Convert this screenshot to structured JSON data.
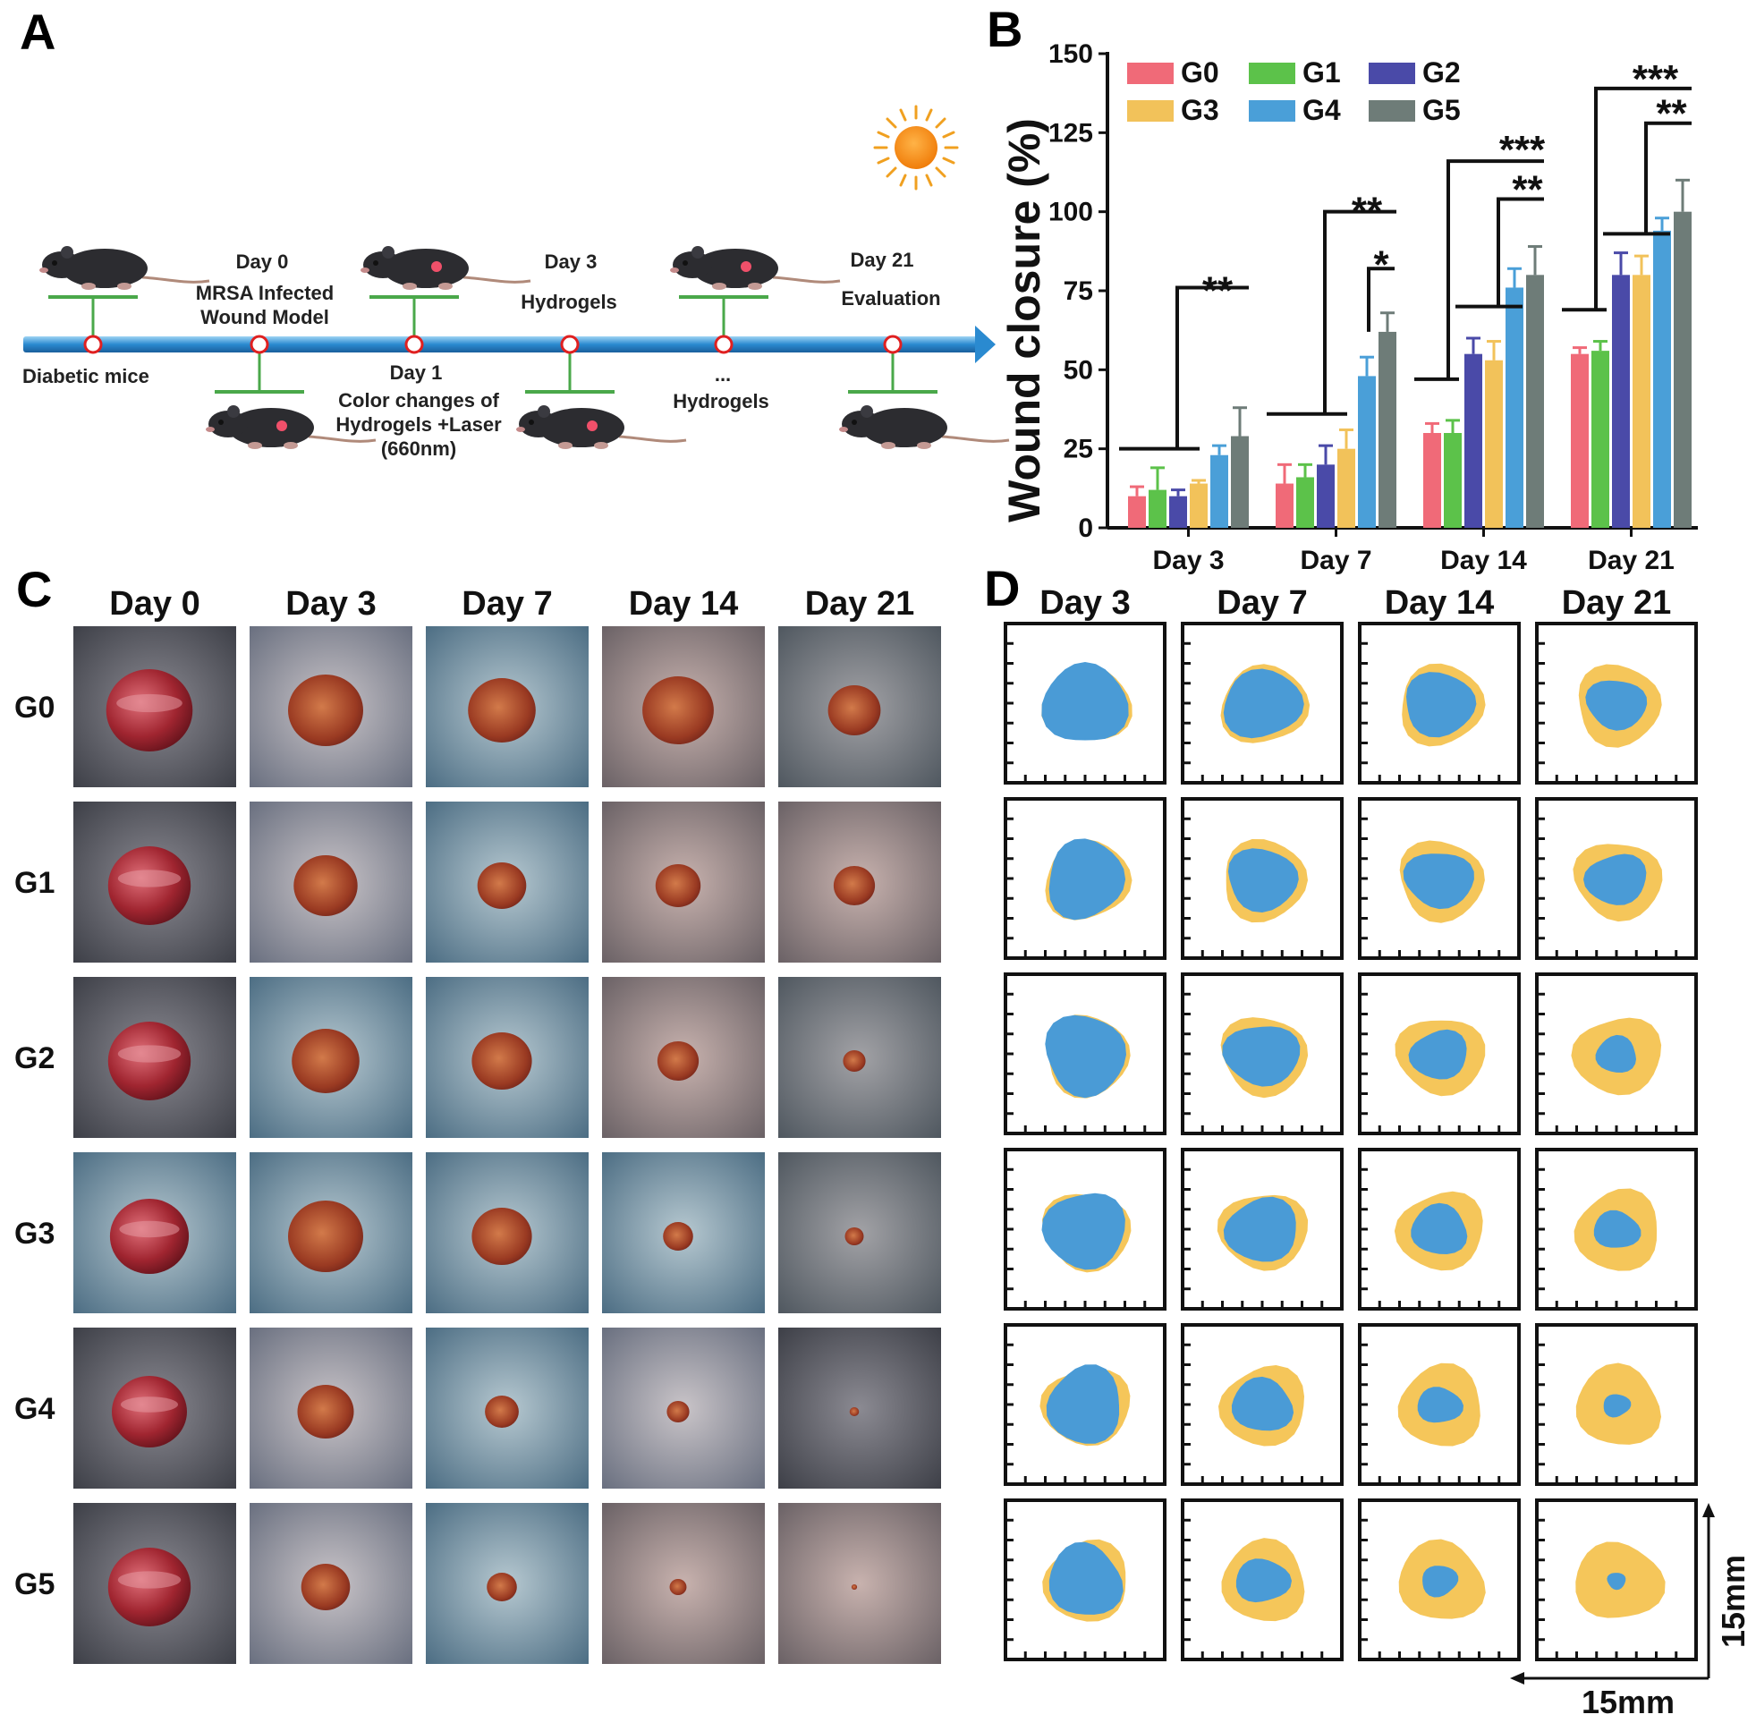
{
  "panel_labels": {
    "a": "A",
    "b": "B",
    "c": "C",
    "d": "D"
  },
  "timeline": {
    "label_diabetic": "Diabetic mice",
    "day0_title": "Day 0",
    "day0_l1": "MRSA Infected",
    "day0_l2": "Wound Model",
    "day1_title": "Day 1",
    "day1_l1": "Color changes of",
    "day1_l2": "Hydrogels +Laser",
    "day1_l3": "(660nm)",
    "day3_title": "Day 3",
    "day3_l1": "Hydrogels",
    "ellipsis": "...",
    "mid_l1": "Hydrogels",
    "day21_title": "Day 21",
    "day21_l1": "Evaluation"
  },
  "chart_data": {
    "type": "bar",
    "categories": [
      "Day 3",
      "Day 7",
      "Day 14",
      "Day 21"
    ],
    "series": [
      {
        "name": "G0",
        "color": "#f06a78",
        "values": [
          10,
          14,
          30,
          55
        ],
        "err": [
          3,
          6,
          3,
          2
        ]
      },
      {
        "name": "G1",
        "color": "#5cc24a",
        "values": [
          12,
          16,
          30,
          56
        ],
        "err": [
          7,
          4,
          4,
          3
        ]
      },
      {
        "name": "G2",
        "color": "#4a4aa8",
        "values": [
          10,
          20,
          55,
          80
        ],
        "err": [
          2,
          6,
          5,
          7
        ]
      },
      {
        "name": "G3",
        "color": "#f2c25a",
        "values": [
          14,
          25,
          53,
          80
        ],
        "err": [
          1,
          6,
          6,
          6
        ]
      },
      {
        "name": "G4",
        "color": "#4a9fd8",
        "values": [
          23,
          48,
          76,
          94
        ],
        "err": [
          3,
          6,
          6,
          4
        ]
      },
      {
        "name": "G5",
        "color": "#6e7c78",
        "values": [
          29,
          62,
          80,
          100
        ],
        "err": [
          9,
          6,
          9,
          10
        ]
      }
    ],
    "ylabel": "Wound closure (%)",
    "ylim": [
      0,
      150
    ],
    "yticks": [
      "0",
      "25",
      "50",
      "75",
      "100",
      "125",
      "150"
    ],
    "significance": [
      "**",
      "**",
      "*",
      "***",
      "**",
      "***",
      "**"
    ],
    "legend_position": "top-left"
  },
  "panel_c": {
    "headers": [
      "Day 0",
      "Day 3",
      "Day 7",
      "Day 14",
      "Day 21"
    ],
    "rows": [
      "G0",
      "G1",
      "G2",
      "G3",
      "G4",
      "G5"
    ]
  },
  "panel_d": {
    "headers": [
      "Day 3",
      "Day 7",
      "Day 14",
      "Day 21"
    ],
    "scale_x": "15mm",
    "scale_y": "15mm",
    "remaining_fraction": [
      [
        0.92,
        0.86,
        0.72,
        0.48
      ],
      [
        0.82,
        0.7,
        0.62,
        0.5
      ],
      [
        0.88,
        0.74,
        0.45,
        0.24
      ],
      [
        0.85,
        0.74,
        0.45,
        0.28
      ],
      [
        0.78,
        0.52,
        0.26,
        0.1
      ],
      [
        0.72,
        0.38,
        0.18,
        0.05
      ]
    ],
    "colors": {
      "original": "#f5c65a",
      "remaining": "#4a9bd6"
    }
  }
}
